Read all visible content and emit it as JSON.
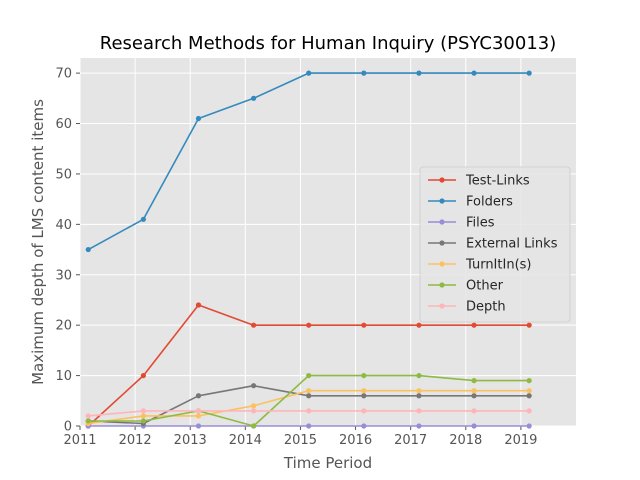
{
  "chart_data": {
    "type": "line",
    "title": "Research Methods for Human Inquiry (PSYC30013)",
    "xlabel": "Time Period",
    "ylabel": "Maximum depth of LMS content items",
    "xlim": [
      2011,
      2020
    ],
    "ylim": [
      0,
      73
    ],
    "xticks": [
      2011,
      2012,
      2013,
      2014,
      2015,
      2016,
      2017,
      2018,
      2019
    ],
    "yticks": [
      0,
      10,
      20,
      30,
      40,
      50,
      60,
      70
    ],
    "grid": true,
    "legend_position": "center-right",
    "x": [
      2011.15,
      2012.15,
      2013.15,
      2014.15,
      2015.15,
      2016.15,
      2017.15,
      2018.15,
      2019.15
    ],
    "series": [
      {
        "name": "Test-Links",
        "color": "#E24A33",
        "values": [
          0,
          10,
          24,
          20,
          20,
          20,
          20,
          20,
          20
        ]
      },
      {
        "name": "Folders",
        "color": "#348ABD",
        "values": [
          35,
          41,
          61,
          65,
          70,
          70,
          70,
          70,
          70
        ]
      },
      {
        "name": "Files",
        "color": "#988ED5",
        "values": [
          0,
          0,
          0,
          0,
          0,
          0,
          0,
          0,
          0
        ]
      },
      {
        "name": "External Links",
        "color": "#777777",
        "values": [
          1,
          0.5,
          6,
          8,
          6,
          6,
          6,
          6,
          6
        ]
      },
      {
        "name": "TurnItIn(s)",
        "color": "#FBC15E",
        "values": [
          0.5,
          2,
          2,
          4,
          7,
          7,
          7,
          7,
          7
        ]
      },
      {
        "name": "Other",
        "color": "#8EBA42",
        "values": [
          1,
          1,
          3,
          0,
          10,
          10,
          10,
          9,
          9
        ]
      },
      {
        "name": "Depth",
        "color": "#FFB5B8",
        "values": [
          2,
          3,
          3,
          3,
          3,
          3,
          3,
          3,
          3
        ]
      }
    ]
  }
}
